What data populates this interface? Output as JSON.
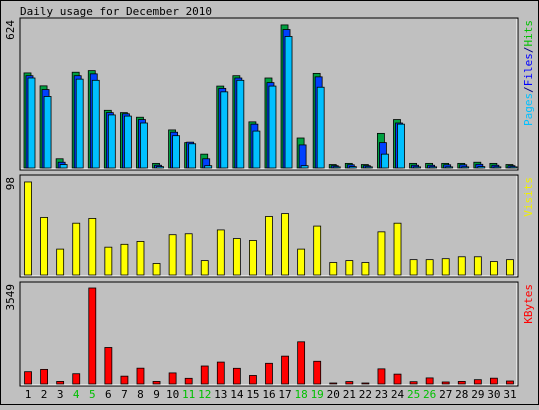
{
  "chart_data": {
    "type": "bar",
    "title": "Daily usage for December 2010",
    "categories": [
      "1",
      "2",
      "3",
      "4",
      "5",
      "6",
      "7",
      "8",
      "9",
      "10",
      "11",
      "12",
      "13",
      "14",
      "15",
      "16",
      "17",
      "18",
      "19",
      "20",
      "21",
      "22",
      "23",
      "24",
      "25",
      "26",
      "27",
      "28",
      "29",
      "30",
      "31"
    ],
    "weekend_days": [
      "4",
      "5",
      "11",
      "12",
      "18",
      "19",
      "25",
      "26"
    ],
    "panels": [
      {
        "id": "hits-files-pages",
        "max_label": "624",
        "ylim": [
          0,
          624
        ],
        "legend_parts": [
          {
            "text": "Pages",
            "color": "#00c0ff"
          },
          {
            "text": "/",
            "color": "#000080"
          },
          {
            "text": "Files",
            "color": "#0000ff"
          },
          {
            "text": "/",
            "color": "#000080"
          },
          {
            "text": "Hits",
            "color": "#00c000"
          }
        ],
        "series": [
          {
            "name": "Hits",
            "color": "#00a040",
            "values": [
              412,
              356,
              40,
              415,
              422,
              250,
              240,
              220,
              20,
              165,
              110,
              60,
              355,
              400,
              200,
              390,
              620,
              130,
              410,
              15,
              20,
              15,
              150,
              210,
              20,
              20,
              20,
              20,
              25,
              20,
              15
            ]
          },
          {
            "name": "Files",
            "color": "#0040ff",
            "values": [
              400,
              340,
              25,
              400,
              408,
              240,
              235,
              210,
              12,
              155,
              112,
              40,
              345,
              390,
              190,
              370,
              600,
              100,
              395,
              10,
              14,
              10,
              110,
              195,
              12,
              12,
              14,
              14,
              16,
              12,
              10
            ]
          },
          {
            "name": "Pages",
            "color": "#00c0ff",
            "values": [
              390,
              310,
              15,
              385,
              380,
              230,
              225,
              195,
              6,
              140,
              105,
              10,
              330,
              380,
              160,
              355,
              570,
              10,
              350,
              5,
              6,
              5,
              60,
              190,
              5,
              5,
              5,
              5,
              6,
              5,
              5
            ]
          }
        ]
      },
      {
        "id": "visits",
        "max_label": "98",
        "ylim": [
          0,
          98
        ],
        "legend_parts": [
          {
            "text": "Visits",
            "color": "#f0f000"
          }
        ],
        "series": [
          {
            "name": "Visits",
            "color": "#ffff00",
            "values": [
              97,
              60,
              27,
              54,
              59,
              29,
              32,
              35,
              12,
              42,
              43,
              15,
              47,
              38,
              36,
              61,
              64,
              27,
              51,
              13,
              15,
              13,
              45,
              54,
              16,
              16,
              17,
              19,
              19,
              14,
              16
            ]
          }
        ]
      },
      {
        "id": "kbytes",
        "max_label": "3549",
        "ylim": [
          0,
          3549
        ],
        "legend_parts": [
          {
            "text": "KBytes",
            "color": "#ff0000"
          }
        ],
        "series": [
          {
            "name": "KBytes",
            "color": "#ff0000",
            "values": [
              455,
              540,
              95,
              380,
              3549,
              1350,
              290,
              585,
              95,
              410,
              210,
              665,
              810,
              580,
              315,
              765,
              1030,
              1560,
              840,
              15,
              90,
              15,
              560,
              365,
              85,
              225,
              75,
              95,
              160,
              215,
              110
            ]
          }
        ]
      }
    ]
  }
}
